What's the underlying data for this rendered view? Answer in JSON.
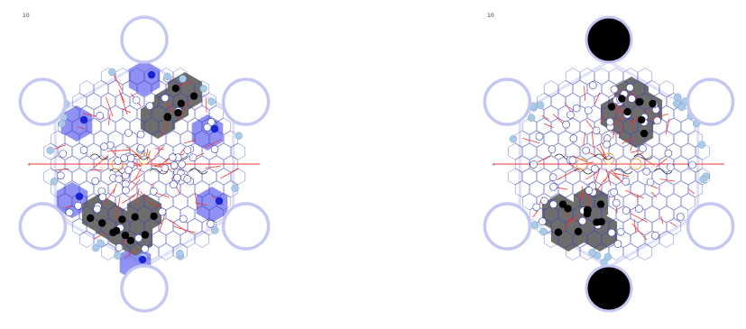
{
  "panels": [
    {
      "corner_label": "10",
      "edge_label": "+",
      "outer_ring_fill": "none",
      "highlight_colors": [
        "#7b7ff2",
        "#6d6d6d"
      ]
    },
    {
      "corner_label": "10",
      "edge_label": "+",
      "outer_ring_fill": "#000000",
      "highlight_colors": [
        "#6d6d6d"
      ]
    }
  ],
  "colors": {
    "ring": "#c4c6f4",
    "tile_blue": "#7b7ff2",
    "tile_gray": "#6d6d6d",
    "line_red": "#ee3535",
    "line_blue": "#3b3fb8",
    "line_orange": "#e8a33a",
    "line_black": "#222222",
    "dot_black": "#000000",
    "dot_blue": "#1724d6",
    "dot_lightblue": "#a9cbe8",
    "dot_white": "#ffffff"
  }
}
